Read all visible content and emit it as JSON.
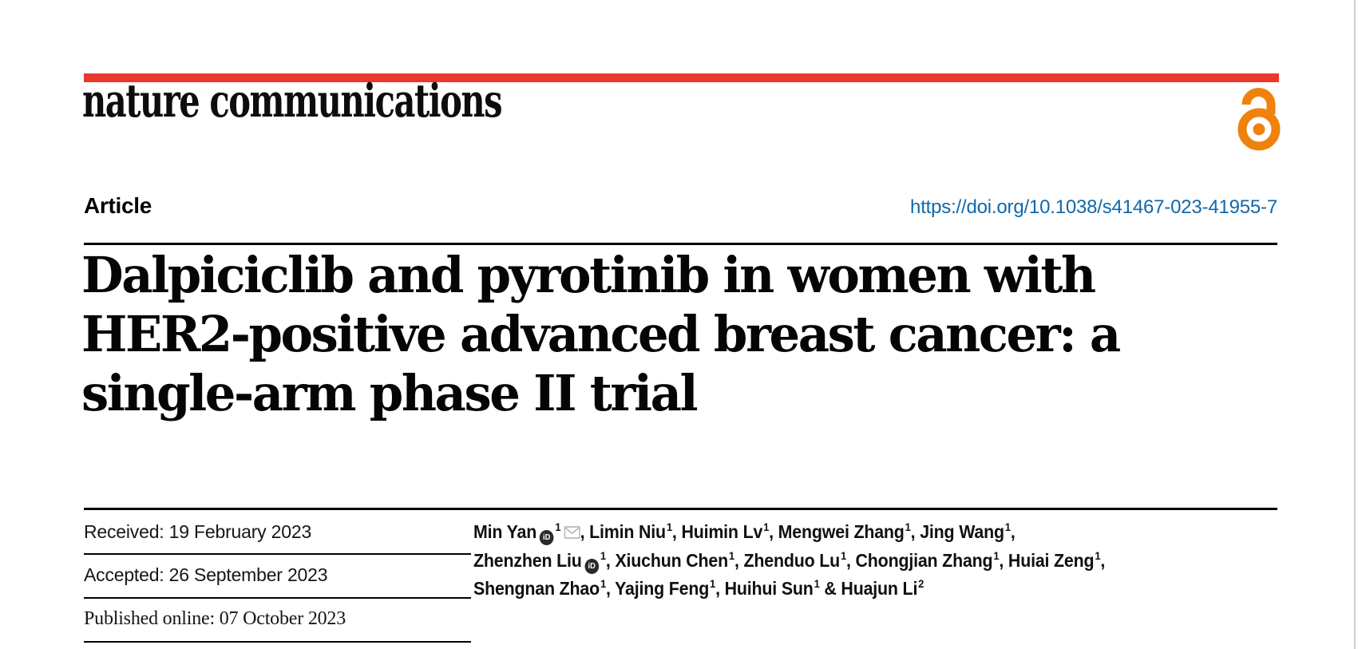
{
  "page": {
    "edge_color": "#cfcfcf"
  },
  "masthead": {
    "journal": "nature communications",
    "brand_bar_color": "#e8392c",
    "open_access_color": "#ef820d"
  },
  "article_row": {
    "label": "Article",
    "doi": "https://doi.org/10.1038/s41467-023-41955-7",
    "doi_color": "#1068ac"
  },
  "title_lines": [
    "Dalpiciclib and pyrotinib in women with",
    "HER2-positive advanced breast cancer: a",
    "single-arm phase II trial"
  ],
  "dates": {
    "received": "Received: 19 February 2023",
    "accepted": "Accepted: 26 September 2023",
    "published": "Published online: 07 October 2023"
  },
  "icons": {
    "orcid_glyph": "iD",
    "orcid_bg": "#2a2a2a",
    "email_stroke": "#b9b9b9"
  },
  "authors": {
    "lines": [
      [
        {
          "name": "Min Yan",
          "orcid": true,
          "sup": "1",
          "email": true,
          "sep": ", "
        },
        {
          "name": "Limin Niu",
          "sup": "1",
          "sep": ", "
        },
        {
          "name": "Huimin Lv",
          "sup": "1",
          "sep": ", "
        },
        {
          "name": "Mengwei Zhang",
          "sup": "1",
          "sep": ", "
        },
        {
          "name": "Jing Wang",
          "sup": "1",
          "sep": ","
        }
      ],
      [
        {
          "name": "Zhenzhen Liu",
          "orcid": true,
          "sup": "1",
          "sep": ", "
        },
        {
          "name": "Xiuchun Chen",
          "sup": "1",
          "sep": ", "
        },
        {
          "name": "Zhenduo Lu",
          "sup": "1",
          "sep": ", "
        },
        {
          "name": "Chongjian Zhang",
          "sup": "1",
          "sep": ", "
        },
        {
          "name": "Huiai Zeng",
          "sup": "1",
          "sep": ","
        }
      ],
      [
        {
          "name": "Shengnan Zhao",
          "sup": "1",
          "sep": ", "
        },
        {
          "name": "Yajing Feng",
          "sup": "1",
          "sep": ", "
        },
        {
          "name": "Huihui Sun",
          "sup": "1",
          "sep": " & "
        },
        {
          "name": "Huajun Li",
          "sup": "2",
          "sep": ""
        }
      ]
    ]
  }
}
